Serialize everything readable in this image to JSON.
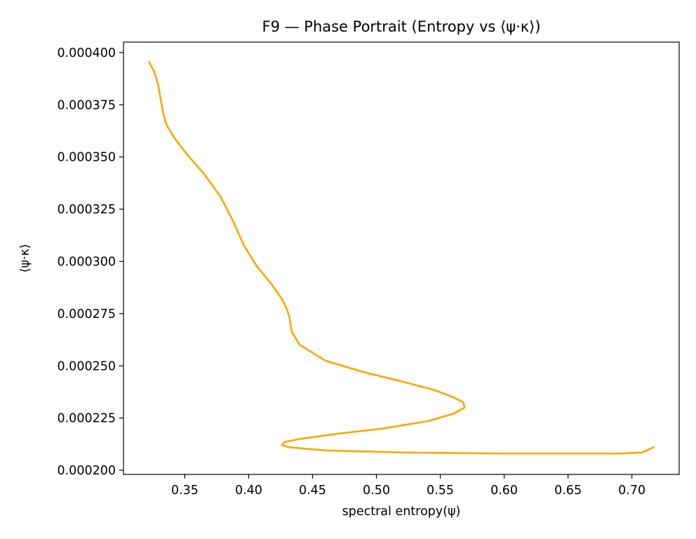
{
  "chart_data": {
    "type": "line",
    "title": "F9 — Phase Portrait (Entropy vs ⟨ψ·κ⟩)",
    "xlabel": "spectral entropy(ψ)",
    "ylabel": "⟨ψ·κ⟩",
    "xlim": [
      0.302,
      0.737
    ],
    "ylim": [
      0.000198,
      0.000405
    ],
    "grid": false,
    "legend": "none",
    "line_color": "#ffa500",
    "x_ticks": [
      {
        "value": 0.35,
        "label": "0.35"
      },
      {
        "value": 0.4,
        "label": "0.40"
      },
      {
        "value": 0.45,
        "label": "0.45"
      },
      {
        "value": 0.5,
        "label": "0.50"
      },
      {
        "value": 0.55,
        "label": "0.55"
      },
      {
        "value": 0.6,
        "label": "0.60"
      },
      {
        "value": 0.65,
        "label": "0.65"
      },
      {
        "value": 0.7,
        "label": "0.70"
      }
    ],
    "y_ticks": [
      {
        "value": 0.0002,
        "label": "0.000200"
      },
      {
        "value": 0.000225,
        "label": "0.000225"
      },
      {
        "value": 0.00025,
        "label": "0.000250"
      },
      {
        "value": 0.000275,
        "label": "0.000275"
      },
      {
        "value": 0.0003,
        "label": "0.000300"
      },
      {
        "value": 0.000325,
        "label": "0.000325"
      },
      {
        "value": 0.00035,
        "label": "0.000350"
      },
      {
        "value": 0.000375,
        "label": "0.000375"
      },
      {
        "value": 0.0004,
        "label": "0.000400"
      }
    ],
    "series": [
      {
        "x": [
          0.322,
          0.326,
          0.329,
          0.331,
          0.333,
          0.336,
          0.342,
          0.352,
          0.365,
          0.378,
          0.388,
          0.396,
          0.406,
          0.418,
          0.426,
          0.43,
          0.432,
          0.433,
          0.434,
          0.44,
          0.46,
          0.49,
          0.52,
          0.545,
          0.56,
          0.568,
          0.569,
          0.56,
          0.54,
          0.505,
          0.47,
          0.44,
          0.428,
          0.426,
          0.432,
          0.46,
          0.52,
          0.6,
          0.65,
          0.69,
          0.708,
          0.717
        ],
        "y": [
          0.0003955,
          0.000391,
          0.000385,
          0.000378,
          0.000371,
          0.000365,
          0.000359,
          0.000351,
          0.000342,
          0.000331,
          0.000319,
          0.000308,
          0.000298,
          0.000289,
          0.000282,
          0.000277,
          0.000273,
          0.000269,
          0.000266,
          0.00026,
          0.0002525,
          0.000247,
          0.0002425,
          0.0002385,
          0.000235,
          0.0002325,
          0.00023,
          0.000227,
          0.0002235,
          0.00022,
          0.0002175,
          0.000215,
          0.0002135,
          0.000212,
          0.000211,
          0.0002095,
          0.0002085,
          0.000208,
          0.000208,
          0.000208,
          0.0002085,
          0.000211
        ]
      }
    ]
  }
}
